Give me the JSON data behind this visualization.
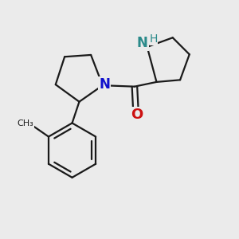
{
  "background_color": "#ebebeb",
  "bond_color": "#1a1a1a",
  "bond_width": 1.6,
  "N1_color": "#1010cc",
  "N2_color": "#2a8a8a",
  "O_color": "#cc1010",
  "figsize": [
    3.0,
    3.0
  ],
  "dpi": 100,
  "xlim": [
    0.0,
    10.0
  ],
  "ylim": [
    0.5,
    10.5
  ]
}
